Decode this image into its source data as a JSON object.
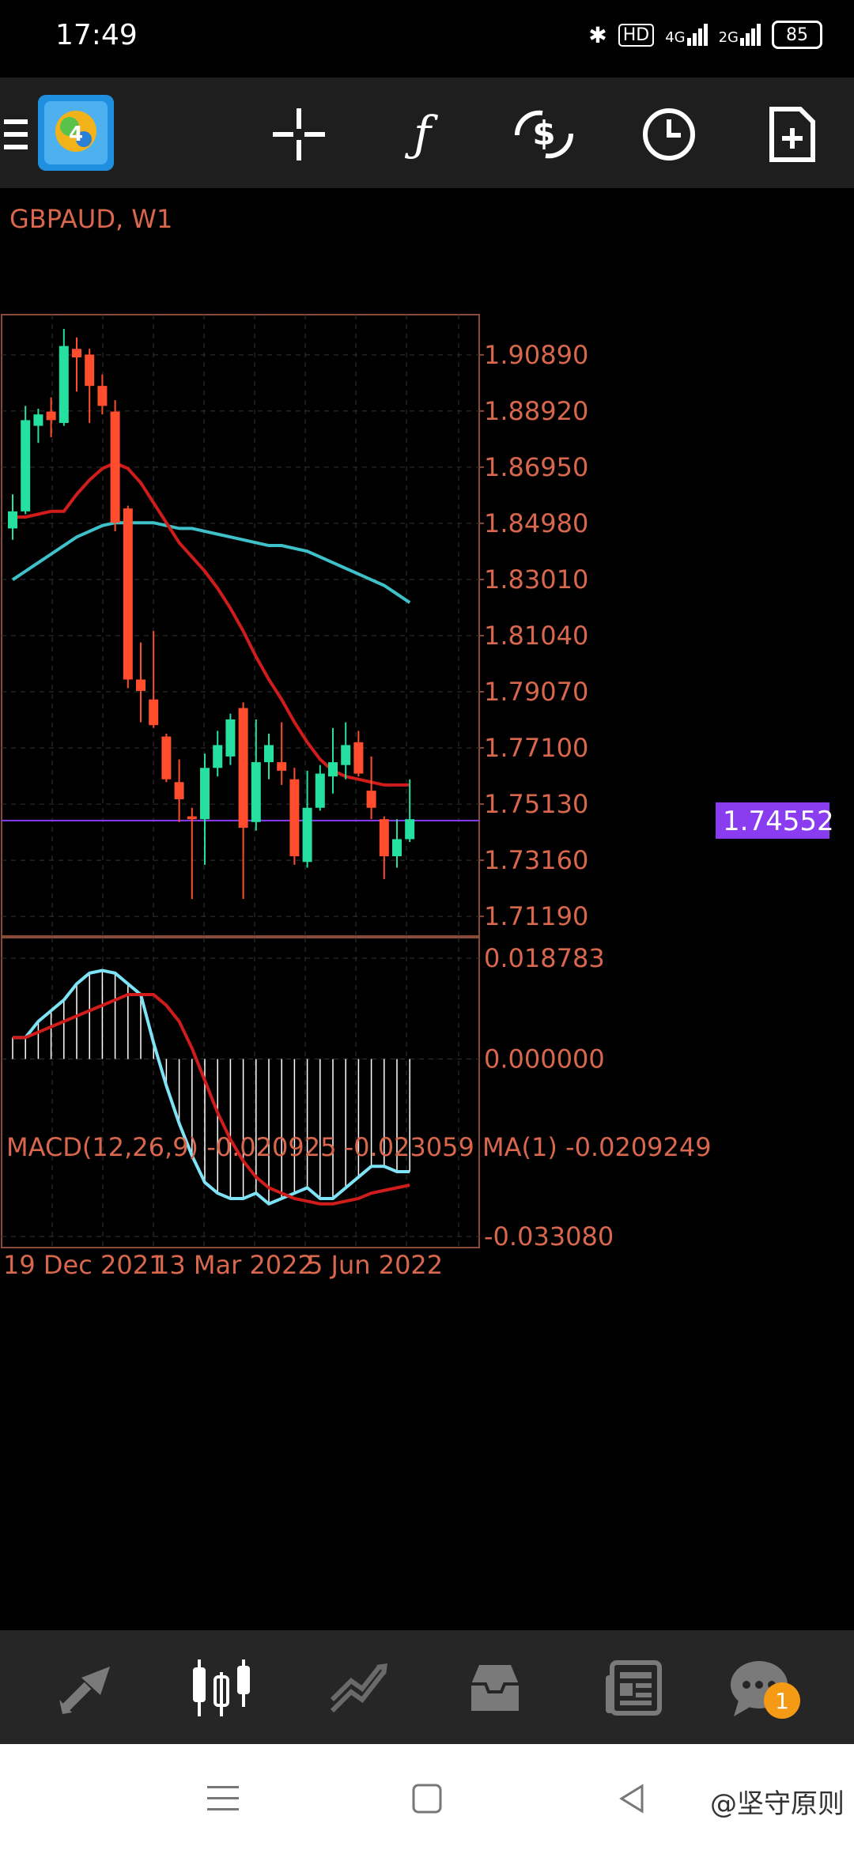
{
  "status_bar": {
    "time": "17:49",
    "network_label": "HD",
    "signal_1": "4G",
    "signal_2": "2G",
    "battery": "85"
  },
  "toolbar": {
    "icons": [
      "menu-icon",
      "metatrader-logo",
      "crosshair-icon",
      "indicators-icon",
      "trade-icon",
      "period-clock-icon",
      "new-order-icon"
    ]
  },
  "chart_data": [
    {
      "type": "candlestick",
      "title": "GBPAUD, W1",
      "symbol": "GBPAUD",
      "timeframe": "W1",
      "ylim": [
        1.705,
        1.923
      ],
      "y_ticks": [
        "1.90890",
        "1.88920",
        "1.86950",
        "1.84980",
        "1.83010",
        "1.81040",
        "1.79070",
        "1.77100",
        "1.75130",
        "1.73160",
        "1.71190"
      ],
      "current_price": "1.74552",
      "current_price_value": 1.74552,
      "candles": [
        {
          "o": 1.848,
          "h": 1.86,
          "l": 1.844,
          "c": 1.854
        },
        {
          "o": 1.854,
          "h": 1.891,
          "l": 1.853,
          "c": 1.886
        },
        {
          "o": 1.884,
          "h": 1.89,
          "l": 1.878,
          "c": 1.888
        },
        {
          "o": 1.889,
          "h": 1.894,
          "l": 1.88,
          "c": 1.886
        },
        {
          "o": 1.885,
          "h": 1.918,
          "l": 1.884,
          "c": 1.912
        },
        {
          "o": 1.911,
          "h": 1.915,
          "l": 1.896,
          "c": 1.908
        },
        {
          "o": 1.909,
          "h": 1.911,
          "l": 1.885,
          "c": 1.898
        },
        {
          "o": 1.898,
          "h": 1.902,
          "l": 1.888,
          "c": 1.891
        },
        {
          "o": 1.889,
          "h": 1.893,
          "l": 1.847,
          "c": 1.85
        },
        {
          "o": 1.855,
          "h": 1.856,
          "l": 1.792,
          "c": 1.795
        },
        {
          "o": 1.795,
          "h": 1.808,
          "l": 1.78,
          "c": 1.791
        },
        {
          "o": 1.788,
          "h": 1.812,
          "l": 1.778,
          "c": 1.779
        },
        {
          "o": 1.775,
          "h": 1.776,
          "l": 1.759,
          "c": 1.76
        },
        {
          "o": 1.759,
          "h": 1.767,
          "l": 1.745,
          "c": 1.753
        },
        {
          "o": 1.747,
          "h": 1.75,
          "l": 1.718,
          "c": 1.746
        },
        {
          "o": 1.746,
          "h": 1.769,
          "l": 1.73,
          "c": 1.764
        },
        {
          "o": 1.764,
          "h": 1.777,
          "l": 1.761,
          "c": 1.772
        },
        {
          "o": 1.768,
          "h": 1.783,
          "l": 1.765,
          "c": 1.781
        },
        {
          "o": 1.785,
          "h": 1.787,
          "l": 1.718,
          "c": 1.743
        },
        {
          "o": 1.745,
          "h": 1.781,
          "l": 1.742,
          "c": 1.766
        },
        {
          "o": 1.766,
          "h": 1.776,
          "l": 1.76,
          "c": 1.772
        },
        {
          "o": 1.766,
          "h": 1.78,
          "l": 1.758,
          "c": 1.763
        },
        {
          "o": 1.76,
          "h": 1.764,
          "l": 1.73,
          "c": 1.733
        },
        {
          "o": 1.731,
          "h": 1.763,
          "l": 1.729,
          "c": 1.75
        },
        {
          "o": 1.75,
          "h": 1.765,
          "l": 1.749,
          "c": 1.762
        },
        {
          "o": 1.761,
          "h": 1.778,
          "l": 1.755,
          "c": 1.766
        },
        {
          "o": 1.765,
          "h": 1.78,
          "l": 1.76,
          "c": 1.772
        },
        {
          "o": 1.773,
          "h": 1.777,
          "l": 1.761,
          "c": 1.762
        },
        {
          "o": 1.756,
          "h": 1.768,
          "l": 1.746,
          "c": 1.75
        },
        {
          "o": 1.746,
          "h": 1.747,
          "l": 1.725,
          "c": 1.733
        },
        {
          "o": 1.733,
          "h": 1.746,
          "l": 1.729,
          "c": 1.739
        },
        {
          "o": 1.739,
          "h": 1.76,
          "l": 1.738,
          "c": 1.746
        }
      ],
      "ma_fast": [
        1.852,
        1.852,
        1.853,
        1.854,
        1.854,
        1.86,
        1.865,
        1.869,
        1.871,
        1.869,
        1.864,
        1.857,
        1.85,
        1.843,
        1.838,
        1.833,
        1.827,
        1.82,
        1.812,
        1.803,
        1.795,
        1.788,
        1.78,
        1.773,
        1.767,
        1.763,
        1.761,
        1.76,
        1.759,
        1.758,
        1.758,
        1.758
      ],
      "ma_slow": [
        1.83,
        1.833,
        1.836,
        1.839,
        1.842,
        1.845,
        1.847,
        1.849,
        1.85,
        1.85,
        1.85,
        1.85,
        1.849,
        1.848,
        1.848,
        1.847,
        1.846,
        1.845,
        1.844,
        1.843,
        1.842,
        1.842,
        1.841,
        1.84,
        1.838,
        1.836,
        1.834,
        1.832,
        1.83,
        1.828,
        1.825,
        1.822
      ],
      "x_labels": [
        "19 Dec 2021",
        "13 Mar 2022",
        "5 Jun 2022"
      ]
    },
    {
      "type": "macd",
      "label": "MACD(12,26,9) -0.020925 -0.023059 MA(1) -0.0209249",
      "ylim": [
        -0.03308,
        0.018783
      ],
      "y_ticks": [
        "0.018783",
        "0.000000",
        "-0.033080"
      ],
      "macd": [
        0.004,
        0.004,
        0.007,
        0.009,
        0.011,
        0.014,
        0.016,
        0.0165,
        0.016,
        0.014,
        0.012,
        0.003,
        -0.005,
        -0.012,
        -0.018,
        -0.023,
        -0.025,
        -0.026,
        -0.026,
        -0.025,
        -0.027,
        -0.026,
        -0.025,
        -0.024,
        -0.026,
        -0.026,
        -0.024,
        -0.022,
        -0.02,
        -0.02,
        -0.021,
        -0.021
      ],
      "signal": [
        0.004,
        0.004,
        0.005,
        0.006,
        0.007,
        0.008,
        0.009,
        0.01,
        0.011,
        0.012,
        0.012,
        0.012,
        0.01,
        0.007,
        0.002,
        -0.004,
        -0.01,
        -0.015,
        -0.019,
        -0.022,
        -0.024,
        -0.025,
        -0.026,
        -0.0265,
        -0.027,
        -0.027,
        -0.0265,
        -0.026,
        -0.025,
        -0.0245,
        -0.024,
        -0.0235
      ]
    }
  ],
  "bottom_nav": {
    "items": [
      "quotes-icon",
      "chart-icon",
      "trade-icon",
      "history-icon",
      "news-icon",
      "chat-icon"
    ],
    "chat_badge": "1"
  },
  "system_nav": {
    "watermark": "@坚守原则"
  },
  "colors": {
    "bull": "#26e0a0",
    "bear": "#ff4d2d",
    "ma_fast": "#d11c1c",
    "ma_slow": "#3ec1c9",
    "macd_line": "#7fe3f7",
    "frame": "#8a4a3a",
    "axis_text": "#d9674d",
    "price_line": "#8a3df0"
  }
}
